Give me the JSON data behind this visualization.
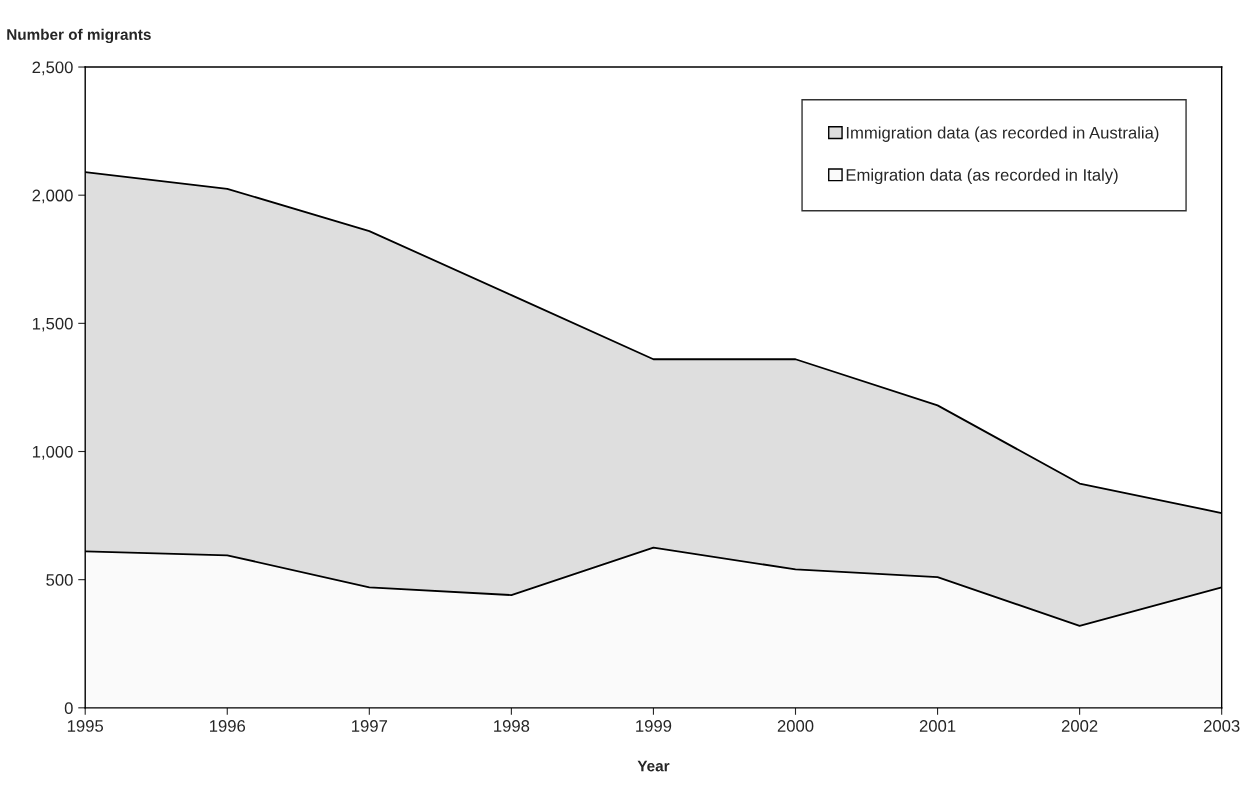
{
  "chart_data": {
    "type": "area",
    "title": "Number of migrants",
    "xlabel": "Year",
    "x": [
      1995,
      1996,
      1997,
      1998,
      1999,
      2000,
      2001,
      2002,
      2003
    ],
    "series": [
      {
        "name": "Immigration data (as recorded in Australia)",
        "color": "#dedede",
        "values": [
          2090,
          2025,
          1860,
          1610,
          1360,
          1360,
          1180,
          875,
          760
        ]
      },
      {
        "name": "Emigration data (as recorded in Italy)",
        "color": "#fafafa",
        "values": [
          610,
          595,
          470,
          440,
          625,
          540,
          510,
          320,
          470
        ]
      }
    ],
    "xlim": [
      1995,
      2003
    ],
    "xticks": [
      1995,
      1996,
      1997,
      1998,
      1999,
      2000,
      2001,
      2002,
      2003
    ],
    "ylim": [
      0,
      2500
    ],
    "yticks": [
      0,
      500,
      {
        "value": 1000,
        "label": "1,000"
      },
      {
        "value": 1500,
        "label": "1,500"
      },
      {
        "value": 2000,
        "label": "2,000"
      },
      {
        "value": 2500,
        "label": "2,500"
      }
    ],
    "legend": "top right",
    "grid": false
  }
}
